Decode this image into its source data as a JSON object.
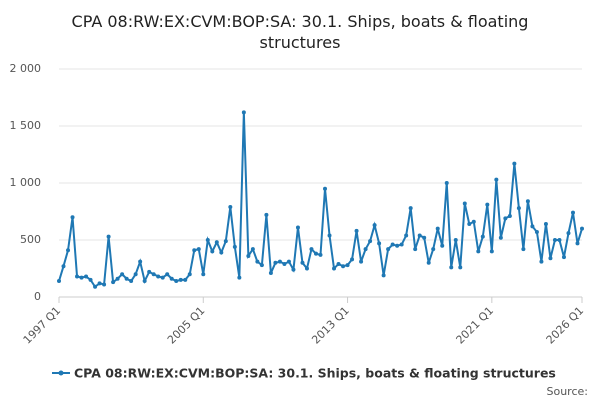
{
  "chart_data": {
    "type": "line",
    "title": "CPA 08:RW:EX:CVM:BOP:SA: 30.1. Ships, boats & floating structures",
    "source": "Source:",
    "categories": [
      "1997 Q1",
      null,
      null,
      null,
      null,
      null,
      null,
      null,
      null,
      null,
      null,
      null,
      null,
      null,
      null,
      null,
      null,
      null,
      null,
      null,
      null,
      null,
      null,
      null,
      null,
      null,
      null,
      null,
      null,
      null,
      null,
      null,
      "2005 Q1",
      null,
      null,
      null,
      null,
      null,
      null,
      null,
      null,
      null,
      null,
      null,
      null,
      null,
      null,
      null,
      null,
      null,
      null,
      null,
      null,
      null,
      null,
      null,
      null,
      null,
      null,
      null,
      null,
      null,
      null,
      null,
      "2013 Q1",
      null,
      null,
      null,
      null,
      null,
      null,
      null,
      null,
      null,
      null,
      null,
      null,
      null,
      null,
      null,
      null,
      null,
      null,
      null,
      null,
      null,
      null,
      null,
      null,
      null,
      null,
      null,
      null,
      null,
      null,
      null,
      "2021 Q1",
      null,
      null,
      null,
      null,
      null,
      null,
      null,
      null,
      null,
      null,
      null,
      null,
      null,
      null,
      null,
      null,
      null,
      null,
      null,
      "2026 Q1"
    ],
    "series": [
      {
        "name": "CPA 08:RW:EX:CVM:BOP:SA: 30.1. Ships, boats & floating structures",
        "color": "#1f78b4",
        "values": [
          140,
          270,
          410,
          700,
          180,
          170,
          180,
          150,
          90,
          120,
          110,
          530,
          130,
          160,
          200,
          160,
          140,
          200,
          310,
          140,
          220,
          200,
          180,
          170,
          200,
          160,
          140,
          150,
          150,
          200,
          410,
          420,
          200,
          500,
          400,
          480,
          390,
          490,
          790,
          440,
          170,
          1620,
          360,
          420,
          310,
          280,
          720,
          210,
          300,
          310,
          290,
          310,
          240,
          610,
          300,
          250,
          420,
          380,
          370,
          950,
          540,
          250,
          290,
          270,
          280,
          330,
          580,
          310,
          420,
          490,
          630,
          470,
          190,
          420,
          460,
          450,
          460,
          540,
          780,
          420,
          540,
          520,
          300,
          420,
          600,
          450,
          1000,
          260,
          500,
          260,
          820,
          640,
          660,
          400,
          530,
          810,
          400,
          1030,
          520,
          690,
          710,
          1170,
          780,
          420,
          840,
          620,
          570,
          310,
          640,
          340,
          500,
          500,
          350,
          560,
          740,
          470,
          600
        ]
      }
    ],
    "ylim": [
      0,
      2000
    ],
    "yticks": [
      0,
      {
        "value": 500,
        "label": "500"
      },
      {
        "value": 1000,
        "label": "1 000"
      },
      {
        "value": 1500,
        "label": "1 500"
      },
      {
        "value": 2000,
        "label": "2 000"
      }
    ],
    "grid": true
  }
}
